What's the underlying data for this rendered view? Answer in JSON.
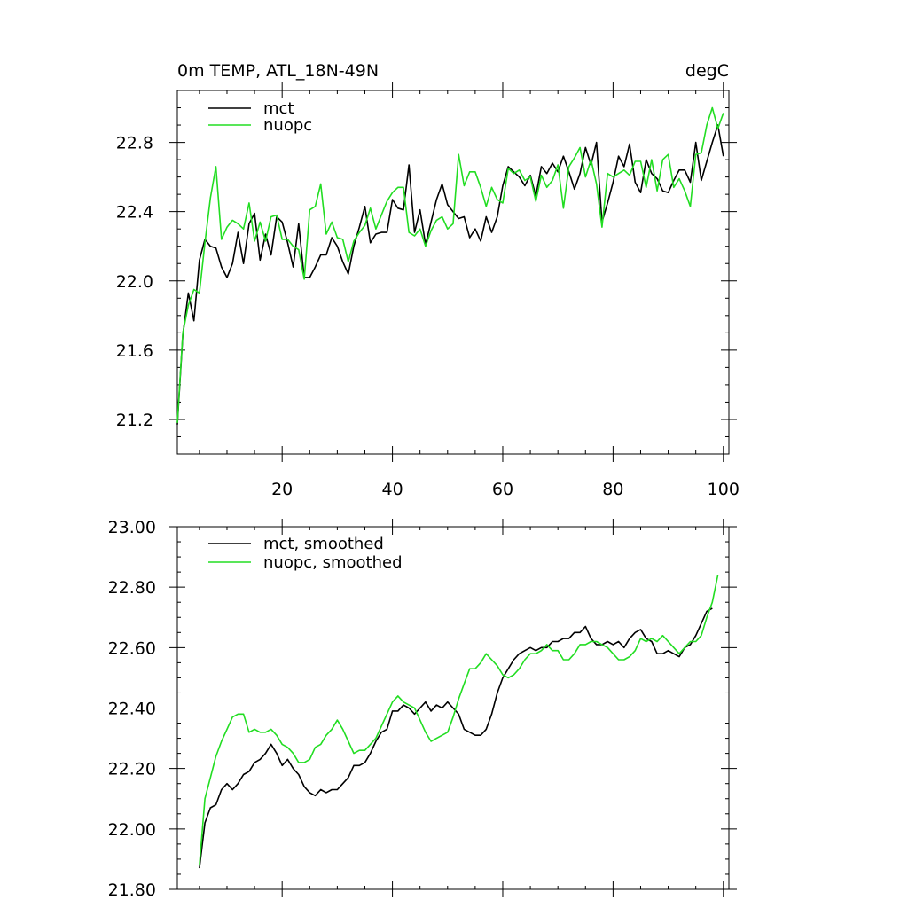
{
  "chart_data": [
    {
      "type": "line",
      "title_left": "0m TEMP, ATL_18N-49N",
      "title_right": "degC",
      "xlim": [
        1,
        101
      ],
      "ylim": [
        21.0,
        23.1
      ],
      "xticks": [
        20,
        40,
        60,
        80,
        100
      ],
      "xtick_labels": [
        "20",
        "40",
        "60",
        "80",
        "100"
      ],
      "yticks": [
        21.2,
        21.6,
        22.0,
        22.4,
        22.8
      ],
      "ytick_labels": [
        "21.2",
        "21.6",
        "22.0",
        "22.4",
        "22.8"
      ],
      "legend_position": "top-left",
      "series": [
        {
          "name": "mct",
          "color": "#000000",
          "x_start": 1,
          "values": [
            21.17,
            21.69,
            21.93,
            21.77,
            22.12,
            22.24,
            22.2,
            22.19,
            22.08,
            22.02,
            22.1,
            22.28,
            22.1,
            22.33,
            22.39,
            22.12,
            22.27,
            22.15,
            22.37,
            22.34,
            22.22,
            22.08,
            22.33,
            22.02,
            22.02,
            22.08,
            22.15,
            22.15,
            22.25,
            22.2,
            22.11,
            22.04,
            22.2,
            22.31,
            22.43,
            22.22,
            22.27,
            22.28,
            22.28,
            22.47,
            22.42,
            22.41,
            22.67,
            22.28,
            22.41,
            22.21,
            22.34,
            22.47,
            22.56,
            22.44,
            22.4,
            22.36,
            22.37,
            22.25,
            22.3,
            22.23,
            22.37,
            22.28,
            22.37,
            22.55,
            22.66,
            22.63,
            22.6,
            22.55,
            22.61,
            22.49,
            22.66,
            22.62,
            22.68,
            22.63,
            22.72,
            22.63,
            22.53,
            22.62,
            22.77,
            22.67,
            22.8,
            22.34,
            22.45,
            22.57,
            22.72,
            22.66,
            22.79,
            22.57,
            22.51,
            22.7,
            22.62,
            22.59,
            22.52,
            22.51,
            22.58,
            22.64,
            22.64,
            22.57,
            22.8,
            22.58,
            22.69,
            22.8,
            22.9,
            22.72
          ]
        },
        {
          "name": "nuopc",
          "color": "#22dd22",
          "x_start": 1,
          "values": [
            21.18,
            21.7,
            21.86,
            21.95,
            21.93,
            22.22,
            22.48,
            22.66,
            22.24,
            22.31,
            22.35,
            22.33,
            22.3,
            22.45,
            22.23,
            22.34,
            22.23,
            22.37,
            22.38,
            22.24,
            22.24,
            22.2,
            22.18,
            22.01,
            22.41,
            22.43,
            22.56,
            22.27,
            22.34,
            22.25,
            22.24,
            22.11,
            22.23,
            22.28,
            22.32,
            22.42,
            22.3,
            22.38,
            22.46,
            22.51,
            22.54,
            22.54,
            22.28,
            22.26,
            22.3,
            22.2,
            22.29,
            22.35,
            22.37,
            22.3,
            22.33,
            22.73,
            22.55,
            22.63,
            22.63,
            22.54,
            22.43,
            22.54,
            22.47,
            22.45,
            22.65,
            22.62,
            22.64,
            22.58,
            22.6,
            22.46,
            22.61,
            22.54,
            22.58,
            22.67,
            22.42,
            22.66,
            22.71,
            22.77,
            22.6,
            22.7,
            22.56,
            22.31,
            22.62,
            22.6,
            22.62,
            22.64,
            22.61,
            22.69,
            22.69,
            22.54,
            22.7,
            22.52,
            22.7,
            22.73,
            22.54,
            22.59,
            22.52,
            22.43,
            22.73,
            22.74,
            22.9,
            23.0,
            22.88,
            22.97
          ]
        }
      ]
    },
    {
      "type": "line",
      "xlim": [
        1,
        101
      ],
      "ylim": [
        21.8,
        23.0
      ],
      "xticks": [
        20,
        40,
        60,
        80,
        100
      ],
      "yticks": [
        21.8,
        22.0,
        22.2,
        22.4,
        22.6,
        22.8,
        23.0
      ],
      "ytick_labels": [
        "21.80",
        "22.00",
        "22.20",
        "22.40",
        "22.60",
        "22.80",
        "23.00"
      ],
      "legend_position": "top-left",
      "series": [
        {
          "name": "mct, smoothed",
          "color": "#000000",
          "x_start": 5,
          "values": [
            21.87,
            22.02,
            22.07,
            22.08,
            22.13,
            22.15,
            22.13,
            22.15,
            22.18,
            22.19,
            22.22,
            22.23,
            22.25,
            22.28,
            22.25,
            22.21,
            22.23,
            22.2,
            22.18,
            22.14,
            22.12,
            22.11,
            22.13,
            22.12,
            22.13,
            22.13,
            22.15,
            22.17,
            22.21,
            22.21,
            22.22,
            22.25,
            22.29,
            22.32,
            22.33,
            22.39,
            22.39,
            22.41,
            22.4,
            22.38,
            22.4,
            22.42,
            22.39,
            22.41,
            22.4,
            22.42,
            22.4,
            22.38,
            22.33,
            22.32,
            22.31,
            22.31,
            22.33,
            22.38,
            22.45,
            22.5,
            22.53,
            22.56,
            22.58,
            22.59,
            22.6,
            22.59,
            22.6,
            22.6,
            22.62,
            22.62,
            22.63,
            22.63,
            22.65,
            22.65,
            22.67,
            22.63,
            22.61,
            22.61,
            22.62,
            22.61,
            22.62,
            22.6,
            22.63,
            22.65,
            22.66,
            22.63,
            22.62,
            22.58,
            22.58,
            22.59,
            22.58,
            22.57,
            22.6,
            22.61,
            22.64,
            22.68,
            22.72,
            22.73
          ]
        },
        {
          "name": "nuopc, smoothed",
          "color": "#22dd22",
          "x_start": 5,
          "values": [
            21.88,
            22.1,
            22.17,
            22.24,
            22.29,
            22.33,
            22.37,
            22.38,
            22.38,
            22.32,
            22.33,
            22.32,
            22.32,
            22.33,
            22.31,
            22.28,
            22.27,
            22.25,
            22.22,
            22.22,
            22.23,
            22.27,
            22.28,
            22.31,
            22.33,
            22.36,
            22.33,
            22.29,
            22.25,
            22.26,
            22.26,
            22.28,
            22.3,
            22.34,
            22.38,
            22.42,
            22.44,
            22.42,
            22.41,
            22.4,
            22.36,
            22.32,
            22.29,
            22.3,
            22.31,
            22.32,
            22.37,
            22.43,
            22.48,
            22.53,
            22.53,
            22.55,
            22.58,
            22.56,
            22.54,
            22.51,
            22.5,
            22.51,
            22.53,
            22.56,
            22.58,
            22.58,
            22.59,
            22.61,
            22.59,
            22.59,
            22.56,
            22.56,
            22.58,
            22.61,
            22.61,
            22.62,
            22.62,
            22.61,
            22.6,
            22.58,
            22.56,
            22.56,
            22.57,
            22.59,
            22.63,
            22.62,
            22.63,
            22.62,
            22.64,
            22.62,
            22.6,
            22.58,
            22.6,
            22.62,
            22.62,
            22.64,
            22.7,
            22.75,
            22.84
          ]
        }
      ]
    }
  ]
}
